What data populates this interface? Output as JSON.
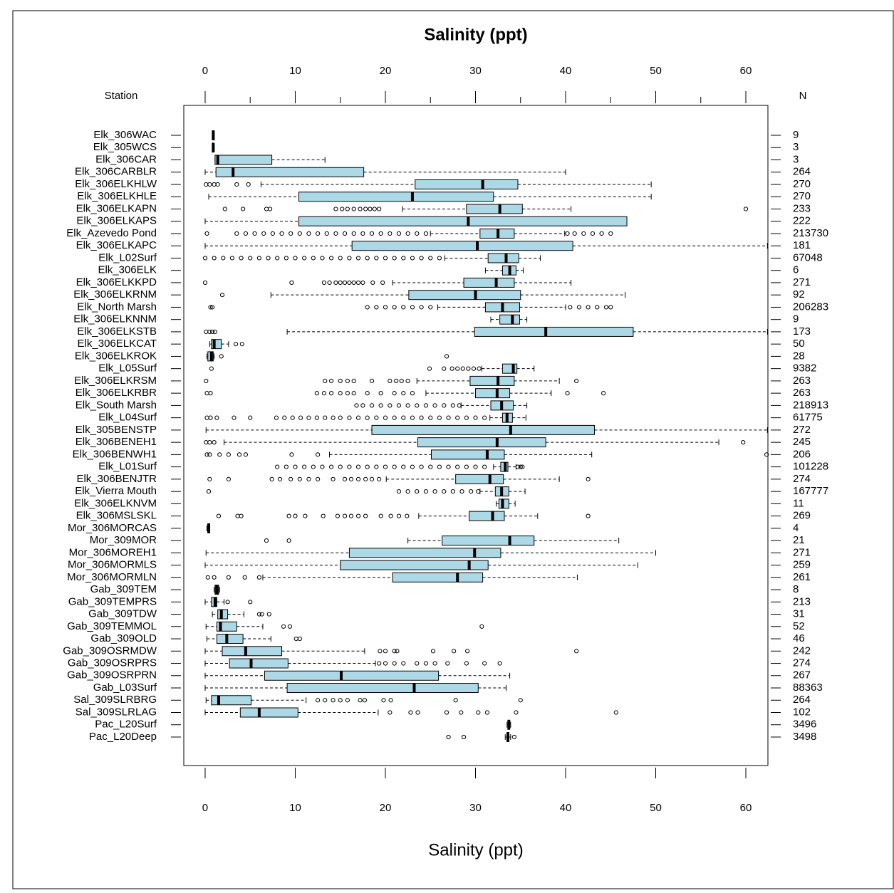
{
  "chart_data": {
    "type": "boxplot",
    "title": "Salinity (ppt)",
    "x_label": "Salinity (ppt)",
    "row_header": "Station",
    "n_header": "N",
    "xlim": [
      -2.37,
      62.45
    ],
    "xticks": [
      0,
      10,
      20,
      30,
      40,
      50,
      60
    ],
    "xminorticks": [
      5,
      15,
      25,
      35,
      45,
      55
    ],
    "box_color": "#add8e6",
    "stations": [
      {
        "name": "Elk_306WAC",
        "stats": [
          0.8,
          0.8,
          0.9,
          1.0,
          1.0
        ],
        "outliers": [],
        "n": 9
      },
      {
        "name": "Elk_305WCS",
        "stats": [
          0.8,
          0.8,
          0.9,
          0.9,
          1.0
        ],
        "outliers": [],
        "n": 3
      },
      {
        "name": "Elk_306CAR",
        "stats": [
          1.1,
          1.1,
          1.4,
          7.4,
          13.3
        ],
        "outliers": [],
        "n": 3
      },
      {
        "name": "Elk_306CARBLR",
        "stats": [
          0,
          1.2,
          3.1,
          17.6,
          40
        ],
        "outliers": [],
        "n": 264
      },
      {
        "name": "Elk_306ELKHLW",
        "stats": [
          6.2,
          23.3,
          30.8,
          34.7,
          49.5
        ],
        "outliers": [
          0.1,
          0.5,
          1.0,
          1.4,
          3.5,
          4.8
        ],
        "n": 270
      },
      {
        "name": "Elk_306ELKHLE",
        "stats": [
          0.4,
          10.4,
          23.0,
          32.0,
          49.5
        ],
        "outliers": [],
        "n": 270
      },
      {
        "name": "Elk_306ELKAPN",
        "stats": [
          21.9,
          29.0,
          32.7,
          35.2,
          40.6
        ],
        "outliers": [
          2.2,
          4.2,
          6.8,
          7.2,
          14.5,
          15.2,
          15.8,
          16.5,
          17.2,
          17.8,
          18.3,
          18.8,
          19.3,
          60
        ],
        "n": 233
      },
      {
        "name": "Elk_306ELKAPS",
        "stats": [
          0,
          10.4,
          29.2,
          46.8,
          46.8
        ],
        "outliers": [],
        "n": 222
      },
      {
        "name": "Elk_Azevedo Pond",
        "stats": [
          25.0,
          30.5,
          32.5,
          34.3,
          39.9
        ],
        "outliers": [
          0.2,
          3.5,
          4.5,
          5.5,
          6.5,
          7.5,
          8.5,
          9.5,
          10.5,
          11.5,
          12.5,
          13.5,
          14.5,
          15.5,
          16.5,
          17.5,
          18.5,
          19.5,
          20.5,
          21.5,
          22.5,
          23.5,
          24.5,
          40.2,
          41,
          42,
          43,
          44,
          45
        ],
        "n": 213730
      },
      {
        "name": "Elk_306ELKAPC",
        "stats": [
          0,
          16.3,
          30.2,
          40.8,
          62.4
        ],
        "outliers": [],
        "n": 181
      },
      {
        "name": "Elk_L02Surf",
        "stats": [
          26.6,
          31.4,
          33.4,
          34.8,
          37.2
        ],
        "outliers": [
          0,
          1,
          2,
          3,
          4,
          5,
          6,
          7,
          8,
          9,
          10,
          11,
          12,
          13,
          14,
          15,
          16,
          17,
          18,
          19,
          20,
          21,
          22,
          23,
          24,
          25,
          26
        ],
        "n": 67048
      },
      {
        "name": "Elk_306ELK",
        "stats": [
          31.1,
          33.0,
          33.8,
          34.5,
          35.3
        ],
        "outliers": [],
        "n": 6
      },
      {
        "name": "Elk_306ELKKPD",
        "stats": [
          20.8,
          28.7,
          32.3,
          34.3,
          40.6
        ],
        "outliers": [
          0,
          9.6,
          13.2,
          13.8,
          14.5,
          15.0,
          15.5,
          16.0,
          16.5,
          17.0,
          17.5,
          18.6,
          19.7
        ],
        "n": 271
      },
      {
        "name": "Elk_306ELKRNM",
        "stats": [
          7.3,
          22.6,
          30.0,
          35.0,
          46.6
        ],
        "outliers": [
          1.9
        ],
        "n": 92
      },
      {
        "name": "Elk_North Marsh",
        "stats": [
          25.8,
          31.1,
          33.0,
          34.9,
          40
        ],
        "outliers": [
          0.6,
          0.8,
          18,
          19,
          20,
          21,
          22,
          23,
          24,
          25,
          40.5,
          41.5,
          42.5,
          43.5,
          44.5,
          45
        ],
        "n": 206283
      },
      {
        "name": "Elk_306ELKNNM",
        "stats": [
          31.7,
          32.7,
          34.1,
          34.9,
          35.7
        ],
        "outliers": [],
        "n": 9
      },
      {
        "name": "Elk_306ELKSTB",
        "stats": [
          9.1,
          29.9,
          37.8,
          47.5,
          62.4
        ],
        "outliers": [
          0.1,
          0.5,
          0.8,
          1.1
        ],
        "n": 173
      },
      {
        "name": "Elk_306ELKCAT",
        "stats": [
          0.5,
          0.7,
          1.0,
          1.8,
          2.6
        ],
        "outliers": [
          3.4,
          4.1
        ],
        "n": 50
      },
      {
        "name": "Elk_306ELKROK",
        "stats": [
          0.2,
          0.3,
          0.7,
          0.9,
          1.0
        ],
        "outliers": [
          1.8,
          26.8
        ],
        "n": 28
      },
      {
        "name": "Elk_L05Surf",
        "stats": [
          30.7,
          33.0,
          34.2,
          34.6,
          36.5
        ],
        "outliers": [
          0.7,
          24.9,
          26.5,
          27.4,
          28.0,
          28.6,
          29.2,
          29.8,
          30.4
        ],
        "n": 9382
      },
      {
        "name": "Elk_306ELKRSM",
        "stats": [
          23.5,
          29.4,
          32.5,
          34.3,
          39.3
        ],
        "outliers": [
          0.1,
          13.3,
          14.0,
          15.0,
          15.8,
          16.5,
          18.5,
          20.5,
          21.2,
          21.8,
          22.5,
          41.2
        ],
        "n": 263
      },
      {
        "name": "Elk_306ELKRBR",
        "stats": [
          24.5,
          30.0,
          32.4,
          33.8,
          38.4
        ],
        "outliers": [
          0.2,
          0.6,
          12.4,
          13.2,
          14.0,
          15.0,
          15.8,
          16.5,
          18.0,
          19.5,
          21.0,
          22.0,
          23.0,
          40.2,
          44.2
        ],
        "n": 263
      },
      {
        "name": "Elk_South Marsh",
        "stats": [
          28.4,
          31.7,
          32.9,
          34.2,
          35.7
        ],
        "outliers": [
          16.8,
          17.5,
          18.5,
          19.5,
          20.5,
          21.5,
          22.5,
          23.5,
          24.5,
          25.5,
          26.5,
          27.5,
          28.2
        ],
        "n": 218913
      },
      {
        "name": "Elk_L04Surf",
        "stats": [
          31.6,
          33.0,
          33.5,
          34.1,
          35.6
        ],
        "outliers": [
          0.2,
          0.6,
          1.3,
          3.2,
          5.0,
          7.9,
          8.8,
          9.7,
          10.6,
          11.5,
          12.4,
          13.3,
          14.2,
          15,
          16,
          17,
          18,
          19,
          20,
          21,
          22,
          23,
          24,
          25,
          26,
          27,
          28,
          29,
          30,
          31
        ],
        "n": 61775
      },
      {
        "name": "Elk_305BENSTP",
        "stats": [
          0.1,
          18.5,
          33.9,
          43.2,
          62.4
        ],
        "outliers": [],
        "n": 272
      },
      {
        "name": "Elk_306BENEH1",
        "stats": [
          2.1,
          23.6,
          32.4,
          37.8,
          57.0
        ],
        "outliers": [
          0.1,
          0.5,
          1.0,
          59.7
        ],
        "n": 245
      },
      {
        "name": "Elk_306BENWH1",
        "stats": [
          13.8,
          25.1,
          31.3,
          33.2,
          42.9
        ],
        "outliers": [
          0.2,
          0.5,
          1.6,
          2.6,
          3.8,
          4.5,
          9.6,
          12.5,
          62.3
        ],
        "n": 206
      },
      {
        "name": "Elk_L01Surf",
        "stats": [
          32.0,
          32.8,
          33.3,
          33.6,
          34.5
        ],
        "outliers": [
          8,
          9,
          10,
          11,
          12,
          13,
          14,
          15,
          16,
          17,
          18,
          19,
          20,
          21,
          22,
          23,
          24,
          25,
          26,
          27,
          28,
          29,
          30,
          31,
          34.7,
          35.0,
          35.2
        ],
        "n": 101228
      },
      {
        "name": "Elk_306BENJTR",
        "stats": [
          20.1,
          27.8,
          31.6,
          33.1,
          39.3
        ],
        "outliers": [
          0.5,
          2.6,
          7.4,
          8.3,
          9.5,
          10.5,
          11.5,
          12.5,
          14.2,
          15.5,
          16.2,
          17.0,
          17.8,
          18.5,
          19.3,
          42.5
        ],
        "n": 274
      },
      {
        "name": "Elk_Vierra Mouth",
        "stats": [
          30.5,
          32.2,
          32.9,
          33.7,
          35.5
        ],
        "outliers": [
          0.4,
          21.5,
          22.5,
          23.5,
          24.5,
          25.5,
          26.5,
          27.5,
          28.5,
          29.5,
          30.3
        ],
        "n": 167777
      },
      {
        "name": "Elk_306ELKNVM",
        "stats": [
          32.3,
          32.6,
          33.0,
          33.7,
          34.4
        ],
        "outliers": [],
        "n": 11
      },
      {
        "name": "Elk_306MSLSKL",
        "stats": [
          23.7,
          29.3,
          31.9,
          33.2,
          36.9
        ],
        "outliers": [
          1.5,
          3.6,
          4.0,
          9.3,
          10.0,
          11.1,
          13.1,
          14.7,
          15.5,
          16.2,
          17.0,
          17.8,
          19.5,
          20.6,
          21.5,
          22.4,
          42.5
        ],
        "n": 269
      },
      {
        "name": "Mor_306MORCAS",
        "stats": [
          0.2,
          0.3,
          0.4,
          0.5,
          0.5
        ],
        "outliers": [],
        "n": 4
      },
      {
        "name": "Mor_309MOR",
        "stats": [
          22.5,
          26.3,
          33.8,
          36.5,
          45.9
        ],
        "outliers": [
          6.8,
          9.3
        ],
        "n": 21
      },
      {
        "name": "Mor_306MOREH1",
        "stats": [
          0.1,
          16.0,
          29.9,
          32.8,
          50.0
        ],
        "outliers": [],
        "n": 271
      },
      {
        "name": "Mor_306MORMLS",
        "stats": [
          0,
          15.0,
          29.3,
          31.4,
          48.0
        ],
        "outliers": [],
        "n": 259
      },
      {
        "name": "Mor_306MORMLN",
        "stats": [
          6.4,
          20.8,
          28.0,
          30.8,
          41.3
        ],
        "outliers": [
          0.3,
          1.0,
          2.6,
          4.4,
          6.0
        ],
        "n": 261
      },
      {
        "name": "Gab_309TEM",
        "stats": [
          1.0,
          1.1,
          1.3,
          1.5,
          1.6
        ],
        "outliers": [],
        "n": 8
      },
      {
        "name": "Gab_309TEMPRS",
        "stats": [
          0,
          0.7,
          1.1,
          1.3,
          2.1
        ],
        "outliers": [
          2.5,
          5.0
        ],
        "n": 213
      },
      {
        "name": "Gab_309TDW",
        "stats": [
          0.8,
          1.4,
          1.8,
          2.5,
          4.3
        ],
        "outliers": [
          6.0,
          6.3,
          7.1
        ],
        "n": 31
      },
      {
        "name": "Gab_309TEMMOL",
        "stats": [
          0.1,
          1.3,
          1.7,
          3.5,
          6.4
        ],
        "outliers": [
          8.7,
          9.4,
          30.7
        ],
        "n": 52
      },
      {
        "name": "Gab_309OLD",
        "stats": [
          0.2,
          1.3,
          2.4,
          4.2,
          7.3
        ],
        "outliers": [
          10.1,
          10.5
        ],
        "n": 46
      },
      {
        "name": "Gab_309OSRMDW",
        "stats": [
          0,
          1.9,
          4.5,
          8.5,
          17.7
        ],
        "outliers": [
          19.4,
          20.0,
          21.0,
          21.3,
          25.3,
          27.6,
          29.1,
          41.2
        ],
        "n": 242
      },
      {
        "name": "Gab_309OSRPRS",
        "stats": [
          0,
          2.7,
          5.1,
          9.2,
          18.9
        ],
        "outliers": [
          19.3,
          20.0,
          21.0,
          22.0,
          23.5,
          24.5,
          25.5,
          26.9,
          29.0,
          31.0,
          32.7
        ],
        "n": 274
      },
      {
        "name": "Gab_309OSRPRN",
        "stats": [
          0,
          6.6,
          15.1,
          25.9,
          33.8
        ],
        "outliers": [],
        "n": 267
      },
      {
        "name": "Gab_L03Surf",
        "stats": [
          0,
          9.1,
          23.2,
          30.3,
          33.4
        ],
        "outliers": [],
        "n": 88363
      },
      {
        "name": "Sal_309SLRBRG",
        "stats": [
          0.1,
          0.7,
          1.5,
          5.1,
          11.2
        ],
        "outliers": [
          12.5,
          13.3,
          14.2,
          15.0,
          15.8,
          17.2,
          17.7,
          19.8,
          20.6,
          27.8,
          35.0
        ],
        "n": 264
      },
      {
        "name": "Sal_309SLRLAG",
        "stats": [
          0,
          3.9,
          6.0,
          10.3,
          19.2
        ],
        "outliers": [
          20.5,
          22.8,
          23.6,
          26.8,
          28.4,
          30.3,
          31.3,
          34.5,
          45.6
        ],
        "n": 102
      },
      {
        "name": "Pac_L20Surf",
        "stats": [
          33.5,
          33.6,
          33.7,
          33.8,
          33.9
        ],
        "outliers": [],
        "n": 3496
      },
      {
        "name": "Pac_L20Deep",
        "stats": [
          33.3,
          33.5,
          33.6,
          33.7,
          33.9
        ],
        "outliers": [
          27.0,
          28.7,
          34.3
        ],
        "n": 3498
      }
    ]
  }
}
